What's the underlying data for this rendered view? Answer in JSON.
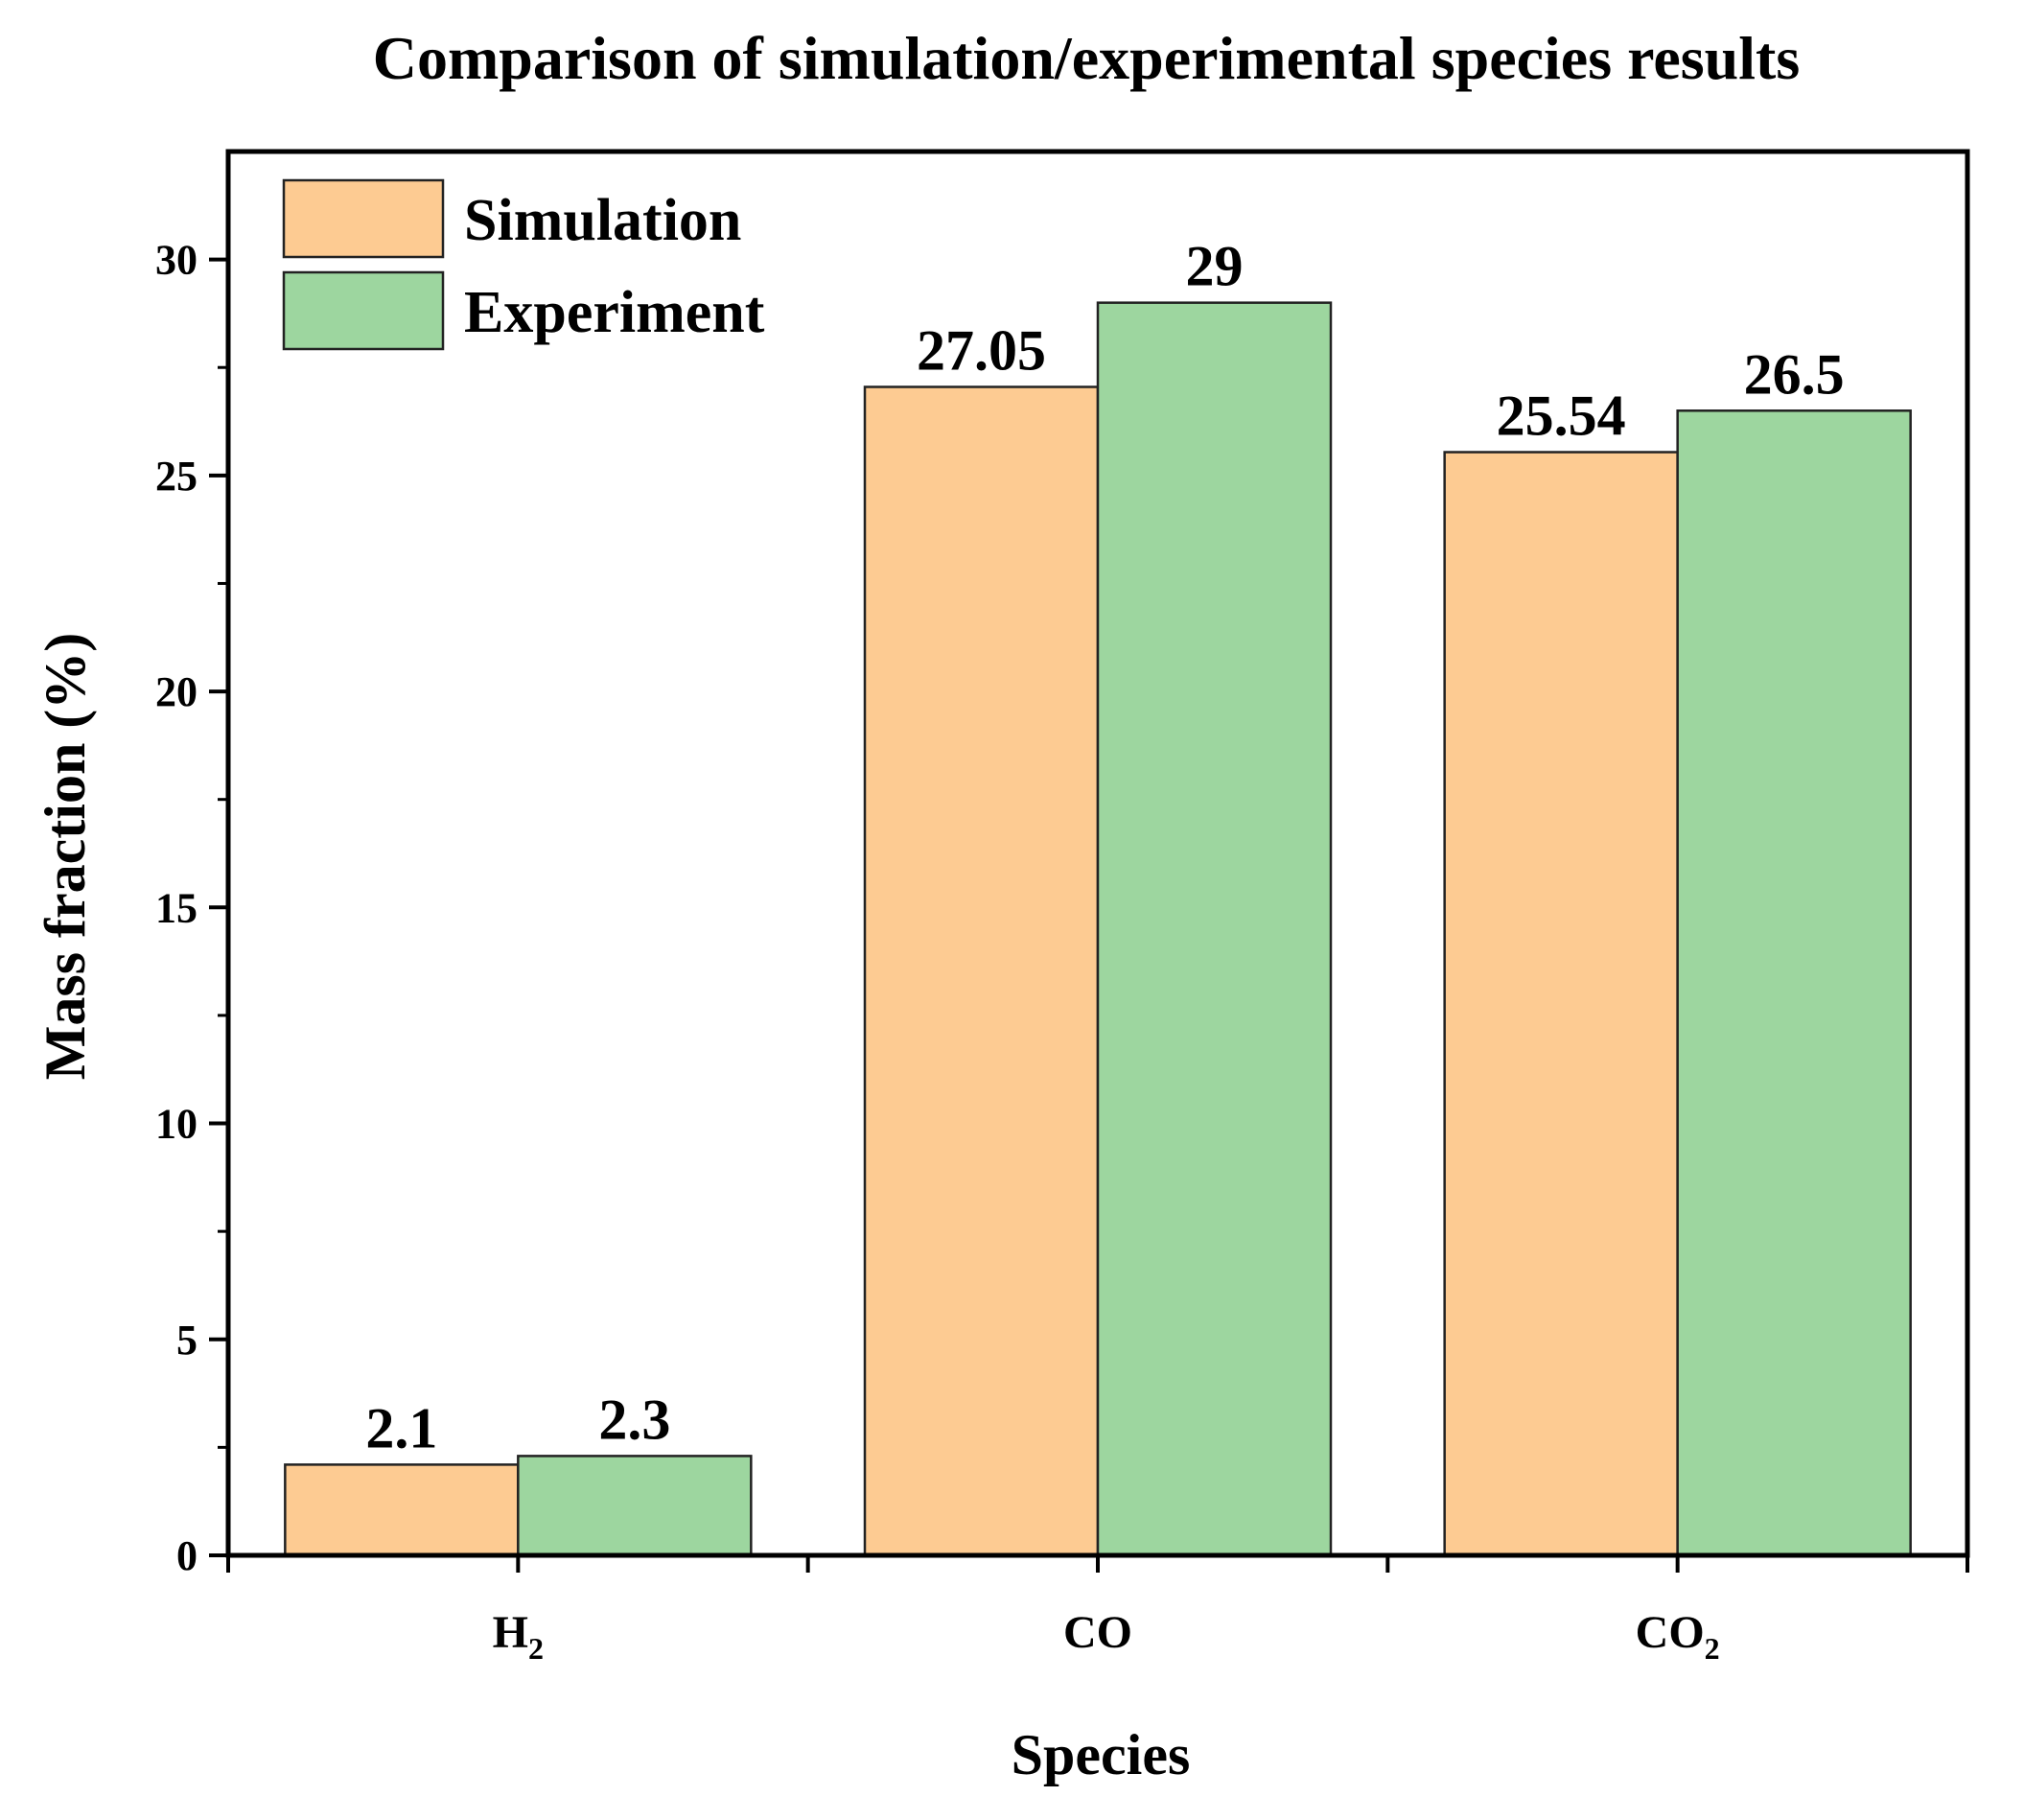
{
  "chart_data": {
    "type": "bar",
    "title": "Comparison of simulation/experimental species results",
    "xlabel": "Species",
    "ylabel": "Mass fraction (%)",
    "categories": [
      {
        "base": "H",
        "sub": "2"
      },
      {
        "base": "CO",
        "sub": ""
      },
      {
        "base": "CO",
        "sub": "2"
      }
    ],
    "series": [
      {
        "name": "Simulation",
        "values": [
          2.1,
          27.05,
          25.54
        ],
        "labels": [
          "2.1",
          "27.05",
          "25.54"
        ],
        "color": "#FDCB92"
      },
      {
        "name": "Experiment",
        "values": [
          2.3,
          29,
          26.5
        ],
        "labels": [
          "2.3",
          "29",
          "26.5"
        ],
        "color": "#9DD69F"
      }
    ],
    "ylim": [
      0,
      32.5
    ],
    "yticks": [
      0,
      5,
      10,
      15,
      20,
      25,
      30
    ],
    "ytick_labels": [
      "0",
      "5",
      "10",
      "15",
      "20",
      "25",
      "30"
    ],
    "legend_position": "top-left",
    "grid": false
  }
}
